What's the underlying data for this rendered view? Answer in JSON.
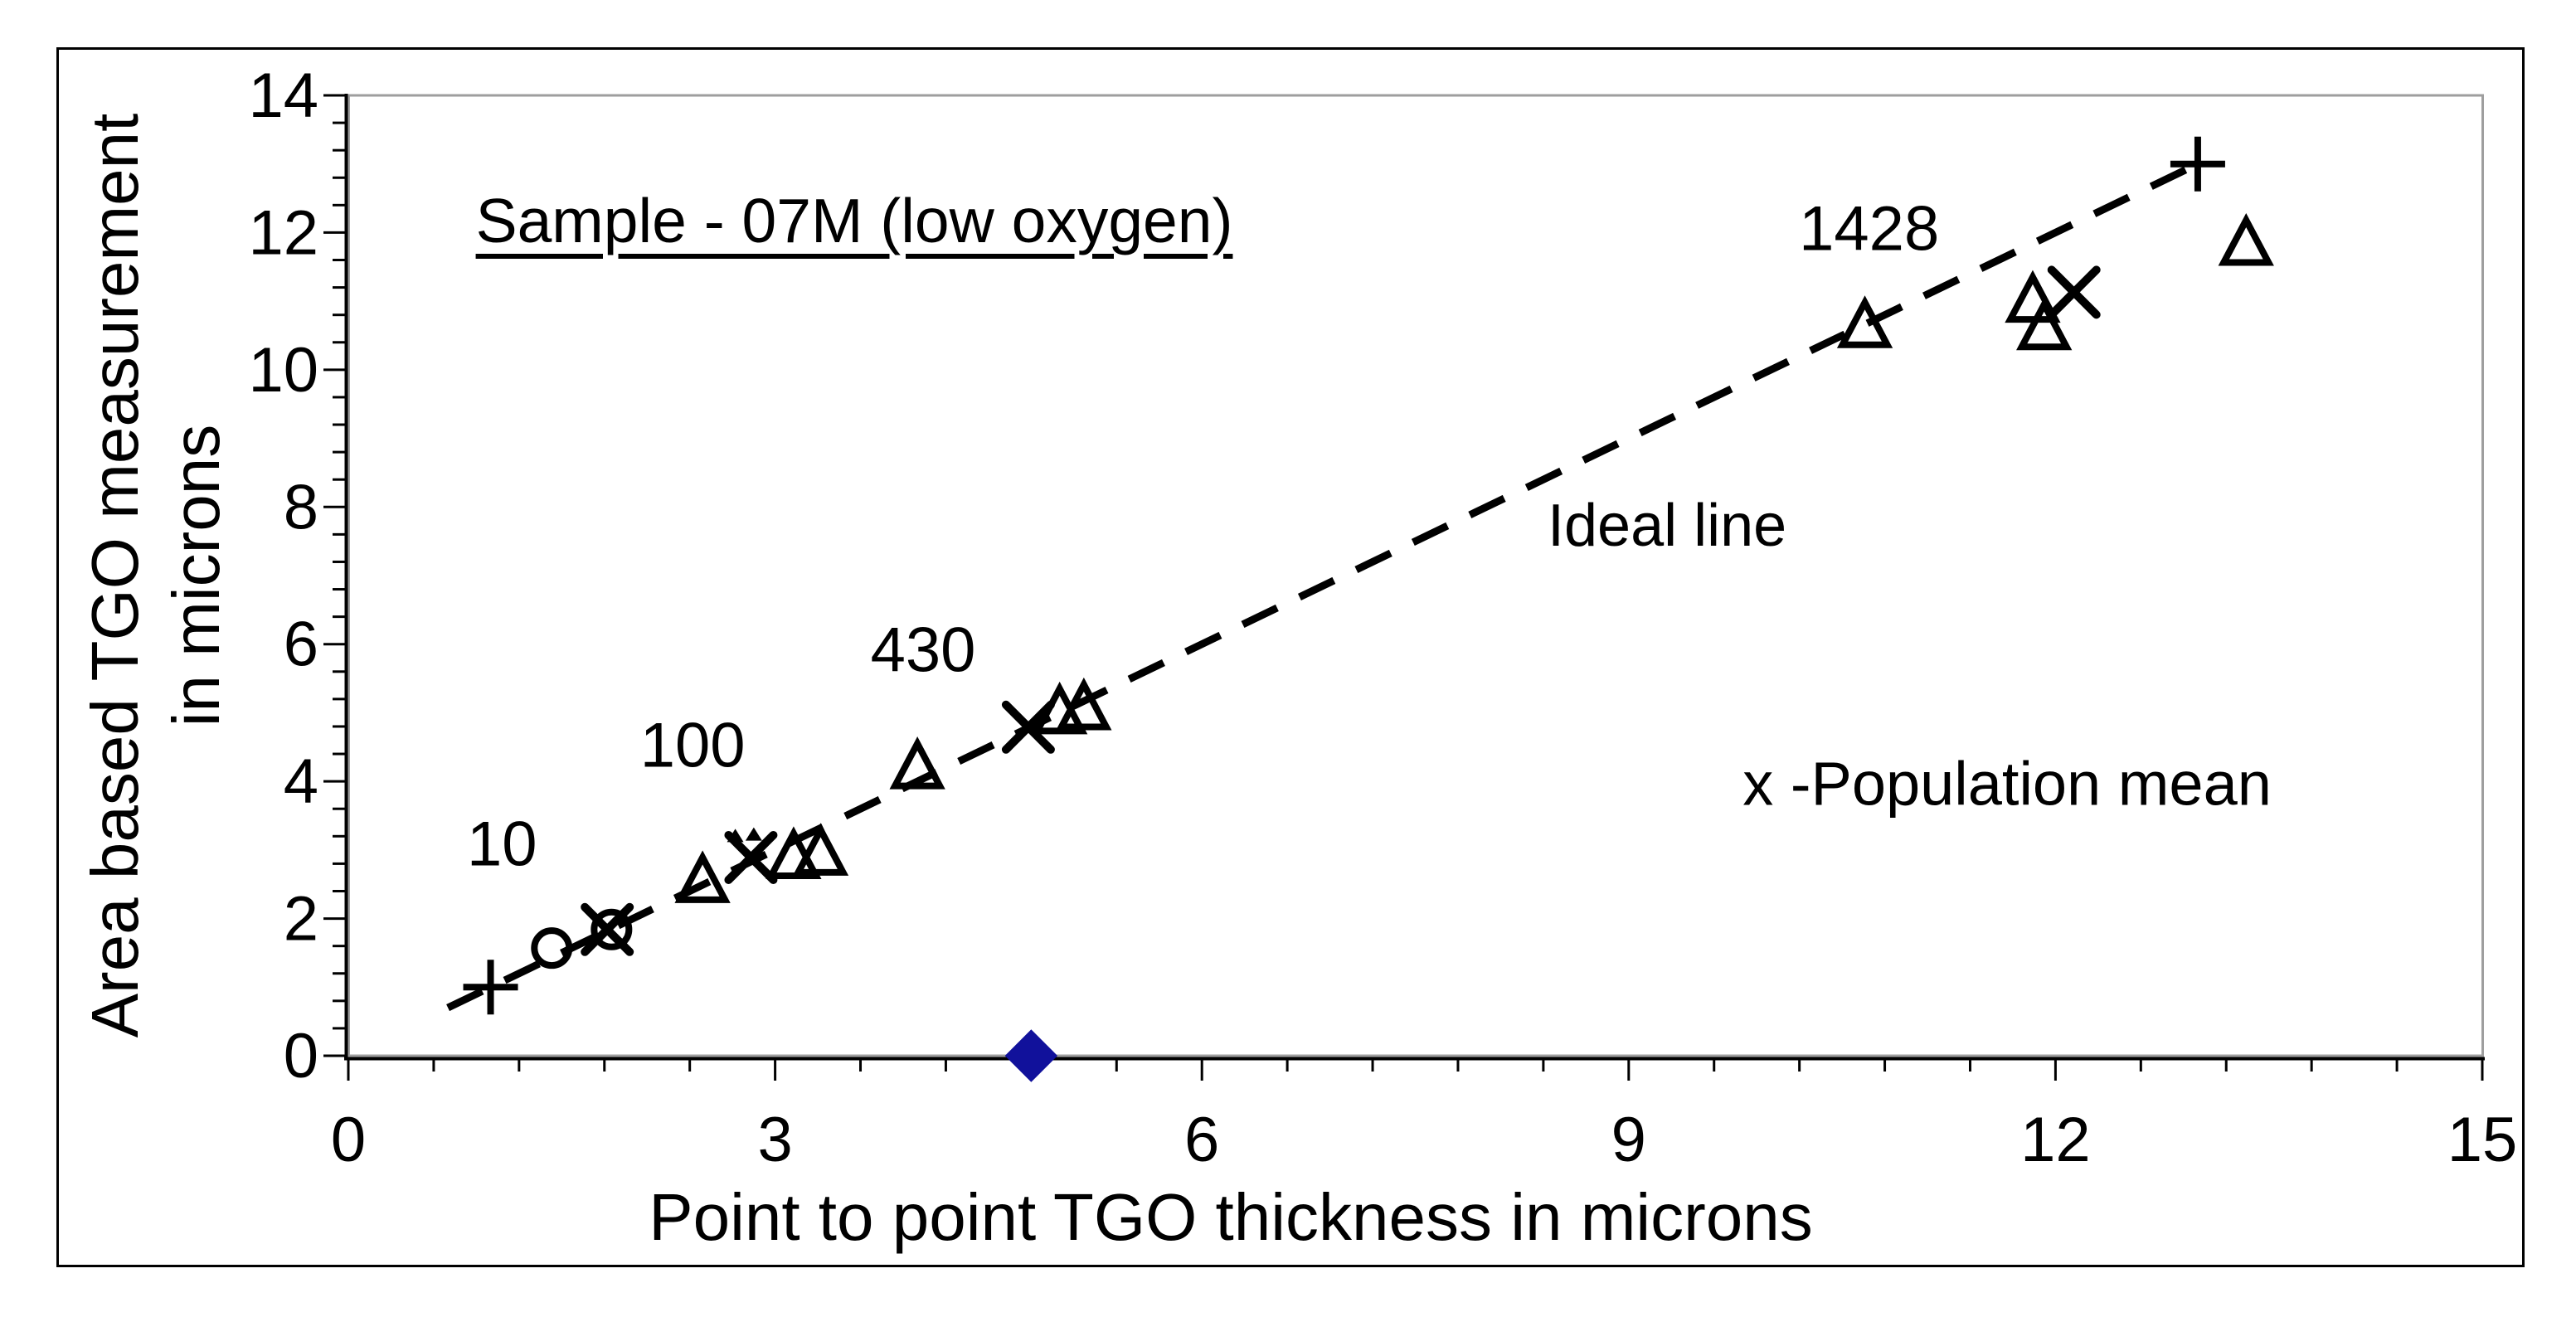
{
  "figure": {
    "background_color": "#ffffff",
    "border_color": "#000000",
    "plot_border_color": "#9e9e9e",
    "axis_color": "#000000",
    "marker_color": "#000000",
    "diamond_color": "#11119b"
  },
  "chart_data": {
    "type": "scatter",
    "title_annotation": "Sample - 07M (low oxygen)",
    "xlabel": "Point to point TGO thickness in microns",
    "ylabel_line1": "Area based TGO measurement",
    "ylabel_line2": "in microns",
    "xlim": [
      0,
      15
    ],
    "ylim": [
      0,
      14
    ],
    "x_ticks": [
      0,
      3,
      6,
      9,
      12,
      15
    ],
    "y_ticks": [
      0,
      2,
      4,
      6,
      8,
      10,
      12,
      14
    ],
    "x_minor_step": 0.6,
    "y_minor_step": 0.4,
    "grid": false,
    "ideal_line": {
      "label": "Ideal line",
      "label_pos": [
        9.27,
        7.72
      ],
      "start": [
        0.7,
        0.7
      ],
      "end": [
        13,
        13
      ],
      "endpoint_markers": [
        [
          1,
          1
        ],
        [
          13,
          13
        ]
      ],
      "style": "dashed"
    },
    "series": [
      {
        "name": "area-based-triangles",
        "marker": "triangle-open",
        "points": [
          [
            2.49,
            2.54
          ],
          [
            3.13,
            2.89
          ],
          [
            3.32,
            2.94
          ],
          [
            4.0,
            4.2
          ],
          [
            5.0,
            5.0
          ],
          [
            5.17,
            5.06
          ],
          [
            10.66,
            10.63
          ],
          [
            11.84,
            11.0
          ],
          [
            11.92,
            10.6
          ],
          [
            13.34,
            11.83
          ]
        ]
      },
      {
        "name": "population-mean-x",
        "marker": "x",
        "points": [
          [
            1.82,
            1.84
          ],
          [
            2.83,
            2.89
          ],
          [
            4.78,
            4.79
          ],
          [
            12.13,
            11.13
          ]
        ]
      },
      {
        "name": "open-circles",
        "marker": "circle-open",
        "points": [
          [
            1.43,
            1.57
          ],
          [
            1.85,
            1.84
          ]
        ]
      },
      {
        "name": "axis-diamond",
        "marker": "diamond-filled",
        "points": [
          [
            4.8,
            0
          ]
        ]
      },
      {
        "name": "dot-marks",
        "marker": "dot",
        "points": [
          [
            2.72,
            3.2
          ],
          [
            2.85,
            3.22
          ]
        ]
      }
    ],
    "point_labels": [
      {
        "text": "10",
        "pos": [
          1.08,
          3.08
        ]
      },
      {
        "text": "100",
        "pos": [
          2.42,
          4.52
        ]
      },
      {
        "text": "430",
        "pos": [
          4.04,
          5.91
        ]
      },
      {
        "text": "1428",
        "pos": [
          10.69,
          12.05
        ]
      }
    ],
    "legend_note": "x -Population mean",
    "legend_note_pos": [
      11.66,
      3.97
    ]
  }
}
